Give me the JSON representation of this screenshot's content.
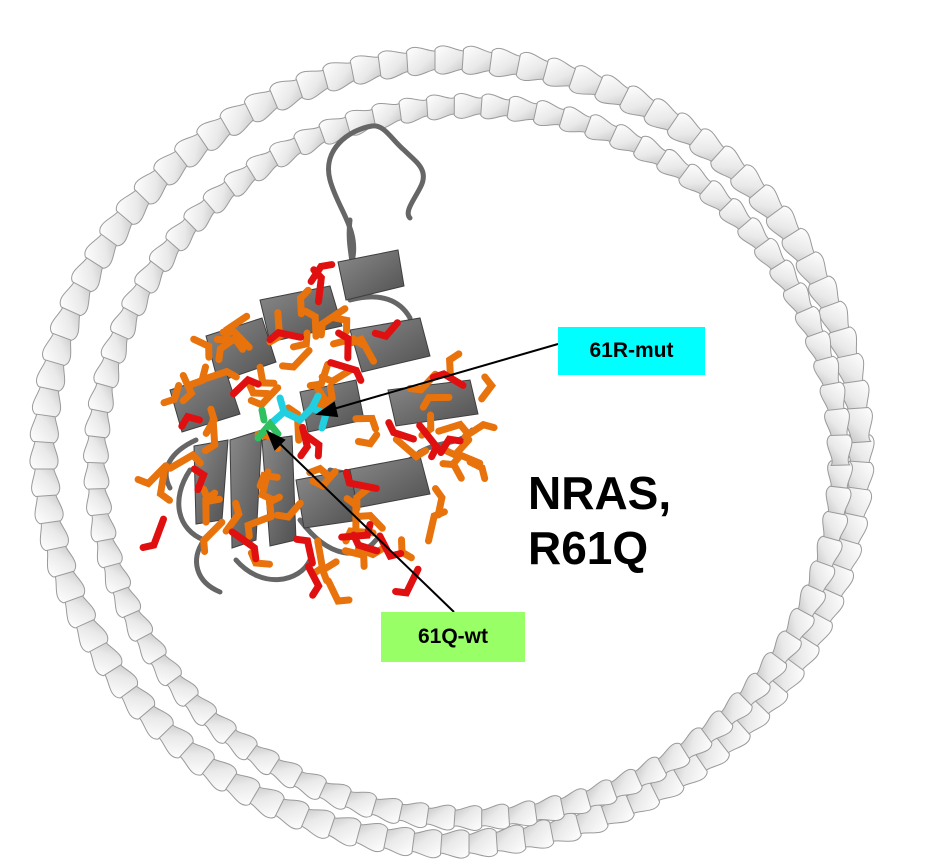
{
  "title": {
    "line1": "NRAS,",
    "line2": "R61Q"
  },
  "callouts": {
    "mutant": {
      "text": "61R-mut",
      "color": "#00ffff"
    },
    "wildtype": {
      "text": "61Q-wt",
      "color": "#99ff66"
    }
  },
  "colors": {
    "ring_helix": "#f4f4f4",
    "ring_outline": "#9a9a9a",
    "protein_ribbon": "#6e6e6e",
    "residue_orange": "#e8720c",
    "residue_red": "#e01010",
    "residue_cyan": "#20d0e0",
    "residue_green": "#30c060"
  }
}
